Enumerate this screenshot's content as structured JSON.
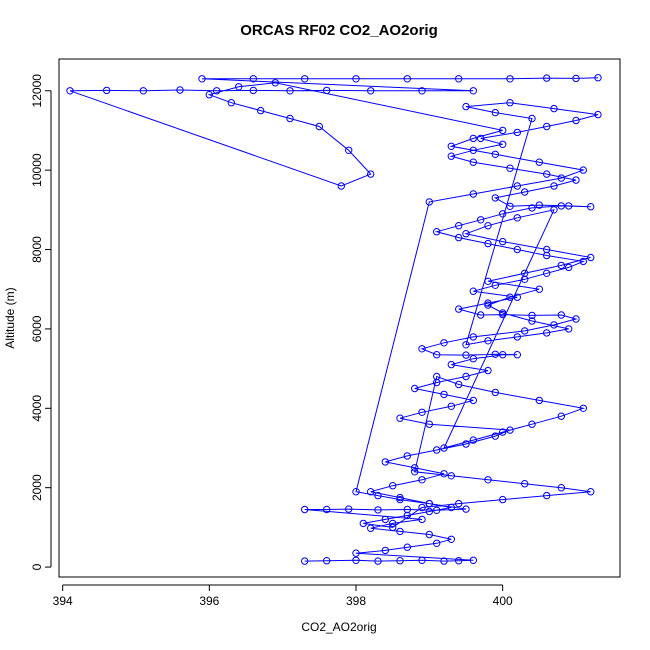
{
  "chart_data": {
    "type": "scatter",
    "title": "ORCAS RF02 CO2_AO2orig",
    "xlabel": "CO2_AO2orig",
    "ylabel": "Altitude (m)",
    "xlim": [
      393.95,
      401.6
    ],
    "ylim": [
      -250,
      12800
    ],
    "xticks": [
      "394",
      "396",
      "398",
      "400"
    ],
    "yticks": [
      "0",
      "2000",
      "4000",
      "6000",
      "8000",
      "10000",
      "12000"
    ],
    "grid": false,
    "legend": "none",
    "marker": "open-circle",
    "connect_points": true,
    "series_color": "#0000ff",
    "series": [
      {
        "name": "",
        "x": [
          397.3,
          397.6,
          398.0,
          398.3,
          398.6,
          398.9,
          399.2,
          399.4,
          399.6,
          398.0,
          398.4,
          398.7,
          399.1,
          399.3,
          399.0,
          398.6,
          398.2,
          398.5,
          398.9,
          397.3,
          397.6,
          397.9,
          398.3,
          398.7,
          399.1,
          399.5,
          399.0,
          398.6,
          398.2,
          398.5,
          398.9,
          399.2,
          398.8,
          398.4,
          398.7,
          399.1,
          399.5,
          399.9,
          400.1,
          399.0,
          398.6,
          398.9,
          399.3,
          399.6,
          399.2,
          398.8,
          399.1,
          399.5,
          399.8,
          399.3,
          399.6,
          400.0,
          400.2,
          399.9,
          399.5,
          399.1,
          398.9,
          399.2,
          399.6,
          400.3,
          400.7,
          401.0,
          400.8,
          400.4,
          400.0,
          399.7,
          399.4,
          399.8,
          400.2,
          399.6,
          399.9,
          400.3,
          400.6,
          400.9,
          401.1,
          400.6,
          400.2,
          399.8,
          399.4,
          399.1,
          399.4,
          399.7,
          400.0,
          400.4,
          400.8,
          401.2,
          400.9,
          400.5,
          400.1,
          399.9,
          400.3,
          400.7,
          401.0,
          400.6,
          400.1,
          399.6,
          399.3,
          399.6,
          400.0,
          399.7,
          400.2,
          400.6,
          401.0,
          401.3,
          400.7,
          400.1,
          399.5,
          399.9,
          400.4,
          399.5,
          399.8,
          400.2,
          400.6,
          400.9,
          400.4,
          400.0,
          399.8,
          400.1,
          400.5,
          399.8,
          400.3,
          400.8,
          401.2,
          400.6,
          400.0,
          399.5,
          399.8,
          400.2,
          400.7,
          399.2,
          399.6,
          400.0,
          400.4,
          400.8,
          401.1,
          400.5,
          399.9,
          399.4,
          399.1,
          398.8,
          399.3,
          399.8,
          400.3,
          400.8,
          401.2,
          400.6,
          400.0,
          399.4,
          398.9,
          398.5,
          398.1,
          398.4,
          398.7,
          399.0,
          399.3,
          399.0,
          398.6,
          398.3,
          398.0,
          399.0,
          399.6,
          400.2,
          400.8,
          401.1,
          400.5,
          399.9,
          399.3,
          399.6,
          400.0,
          396.9,
          396.4,
          396.0,
          396.3,
          396.7,
          397.1,
          397.5,
          397.9,
          398.2,
          397.8,
          394.1,
          394.6,
          395.1,
          395.6,
          396.1,
          396.6,
          397.1,
          397.6,
          398.2,
          398.9,
          399.6,
          395.9,
          396.6,
          397.3,
          398.0,
          398.7,
          399.4,
          400.1,
          400.6,
          401.0,
          401.3
        ],
        "y": [
          150,
          160,
          170,
          150,
          160,
          170,
          150,
          160,
          170,
          350,
          420,
          500,
          600,
          700,
          820,
          900,
          980,
          1100,
          1200,
          1450,
          1450,
          1460,
          1440,
          1450,
          1430,
          1460,
          1600,
          1750,
          1900,
          2050,
          2200,
          2350,
          2500,
          2650,
          2800,
          2950,
          3100,
          3300,
          3450,
          3600,
          3750,
          3900,
          4050,
          4200,
          4350,
          4500,
          4650,
          4800,
          4950,
          5100,
          5250,
          5350,
          5350,
          5360,
          5340,
          5350,
          5500,
          5650,
          5800,
          5950,
          6100,
          6250,
          6350,
          6340,
          6360,
          6350,
          6500,
          6650,
          6800,
          6950,
          7100,
          7250,
          7400,
          7550,
          7700,
          7850,
          8000,
          8150,
          8300,
          8450,
          8600,
          8750,
          8900,
          9050,
          9100,
          9080,
          9100,
          9120,
          9090,
          9300,
          9450,
          9600,
          9750,
          9900,
          10050,
          10200,
          10350,
          10500,
          10650,
          10800,
          10950,
          11100,
          11250,
          11400,
          11550,
          11700,
          11600,
          11450,
          11300,
          5600,
          5700,
          5800,
          5900,
          6000,
          6200,
          6400,
          6600,
          6800,
          7000,
          7200,
          7400,
          7600,
          7800,
          8000,
          8200,
          8400,
          8600,
          8800,
          9000,
          3000,
          3200,
          3400,
          3600,
          3800,
          4000,
          4200,
          4400,
          4600,
          4800,
          2400,
          2300,
          2200,
          2100,
          2000,
          1900,
          1800,
          1700,
          1600,
          1500,
          1000,
          1100,
          1200,
          1300,
          1400,
          1500,
          1600,
          1700,
          1800,
          1900,
          9200,
          9400,
          9600,
          9800,
          10000,
          10200,
          10400,
          10600,
          10800,
          11000,
          12200,
          12100,
          11900,
          11700,
          11500,
          11300,
          11100,
          10500,
          9900,
          9600,
          12000,
          12010,
          12000,
          12020,
          12000,
          12010,
          12000,
          12010,
          12000,
          12000,
          12000,
          12300,
          12300,
          12300,
          12300,
          12300,
          12300,
          12300,
          12320,
          12310,
          12330
        ]
      }
    ]
  }
}
